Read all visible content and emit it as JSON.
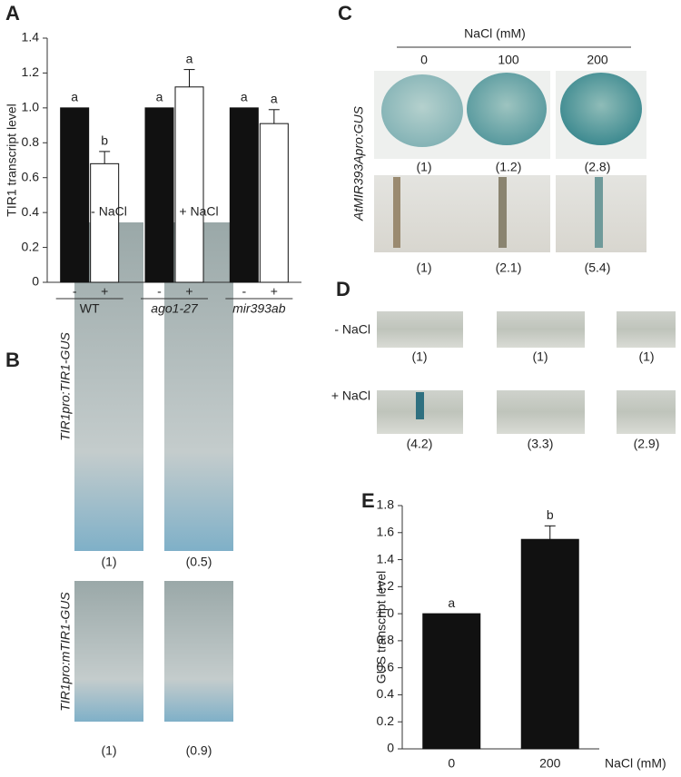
{
  "chart_data": [
    {
      "type": "bar",
      "panel": "A",
      "ylabel": "TIR1 transcript level",
      "categories": [
        "WT",
        "ago1-27",
        "mir393ab"
      ],
      "series": [
        {
          "name": "-",
          "color": "#111111",
          "values": [
            1.0,
            1.0,
            1.0
          ],
          "errors": [
            null,
            null,
            null
          ],
          "sig_letters": [
            "a",
            "a",
            "a"
          ]
        },
        {
          "name": "+",
          "color": "#ffffff",
          "values": [
            0.68,
            1.12,
            0.91
          ],
          "errors": [
            0.07,
            0.1,
            0.08
          ],
          "sig_letters": [
            "b",
            "a",
            "a"
          ]
        }
      ],
      "ylim": [
        0,
        1.4
      ],
      "yticks": [
        0,
        0.2,
        0.4,
        0.6,
        0.8,
        {
          "value": 1,
          "label": "1.0"
        },
        1.2,
        1.4
      ]
    },
    {
      "type": "bar",
      "panel": "E",
      "ylabel": "GUS transcript level",
      "xlabel": "NaCl (mM)",
      "categories": [
        "0",
        "200"
      ],
      "color": "#111111",
      "values": [
        1.0,
        1.55
      ],
      "errors": [
        null,
        0.1
      ],
      "sig_letters": [
        "a",
        "b"
      ],
      "ylim": [
        0,
        1.8
      ],
      "yticks": [
        0,
        0.2,
        0.4,
        0.6,
        0.8,
        {
          "value": 1,
          "label": "1.0"
        },
        1.2,
        1.4,
        1.6,
        1.8
      ]
    }
  ],
  "panels": {
    "B": {
      "letter": "B",
      "columns": [
        "- NaCl",
        "+ NaCl"
      ],
      "rows": [
        {
          "label": "TIR1pro:TIR1-GUS",
          "values": [
            "(1)",
            "(0.5)"
          ]
        },
        {
          "label": "TIR1pro:mTIR1-GUS",
          "values": [
            "(1)",
            "(0.9)"
          ]
        }
      ]
    },
    "C": {
      "letter": "C",
      "header": "NaCl (mM)",
      "columns": [
        "0",
        "100",
        "200"
      ],
      "row_label": "AtMIR393Apro:GUS",
      "rows": [
        {
          "values": [
            "(1)",
            "(1.2)",
            "(2.8)"
          ]
        },
        {
          "values": [
            "(1)",
            "(2.1)",
            "(5.4)"
          ]
        }
      ]
    },
    "D": {
      "letter": "D",
      "rows": [
        {
          "label": "- NaCl",
          "values": [
            "(1)",
            "(1)",
            "(1)"
          ]
        },
        {
          "label": "+ NaCl",
          "values": [
            "(4.2)",
            "(3.3)",
            "(2.9)"
          ]
        }
      ]
    }
  }
}
